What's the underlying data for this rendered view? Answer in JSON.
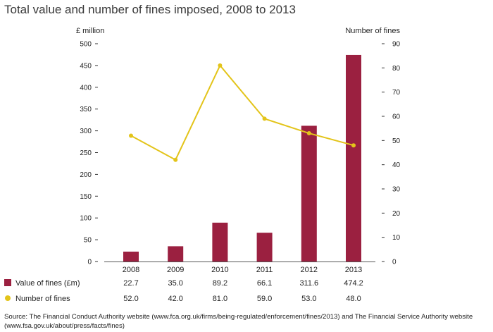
{
  "title": "Total value and number of fines imposed, 2008 to 2013",
  "source": "Source: The Financial Conduct Authority website (www.fca.org.uk/firms/being-regulated/enforcement/fines/2013) and The Financial Service Authority website (www.fsa.gov.uk/about/press/facts/fines)",
  "colors": {
    "bar": "#9b2040",
    "line": "#e3c41a"
  },
  "chart_data": {
    "type": "bar",
    "title": "Total value and number of fines imposed, 2008 to 2013",
    "categories": [
      "2008",
      "2009",
      "2010",
      "2011",
      "2012",
      "2013"
    ],
    "series": [
      {
        "name": "Value of fines (£m)",
        "type": "bar",
        "axis": "left",
        "values": [
          22.7,
          35.0,
          89.2,
          66.1,
          311.6,
          474.2
        ],
        "labels": [
          "22.7",
          "35.0",
          "89.2",
          "66.1",
          "311.6",
          "474.2"
        ]
      },
      {
        "name": "Number of fines",
        "type": "line",
        "axis": "right",
        "values": [
          52.0,
          42.0,
          81.0,
          59.0,
          53.0,
          48.0
        ],
        "labels": [
          "52.0",
          "42.0",
          "81.0",
          "59.0",
          "53.0",
          "48.0"
        ]
      }
    ],
    "ylabel": "£ million",
    "y2label": "Number of fines",
    "ylim": [
      0,
      500
    ],
    "y2lim": [
      0,
      90
    ],
    "yticks": [
      "0",
      "50",
      "100",
      "150",
      "200",
      "250",
      "300",
      "350",
      "400",
      "450",
      "500"
    ],
    "y2ticks": [
      "0",
      "10",
      "20",
      "30",
      "40",
      "50",
      "60",
      "70",
      "80",
      "90"
    ],
    "grid": false,
    "legend": "bottom-left table"
  }
}
